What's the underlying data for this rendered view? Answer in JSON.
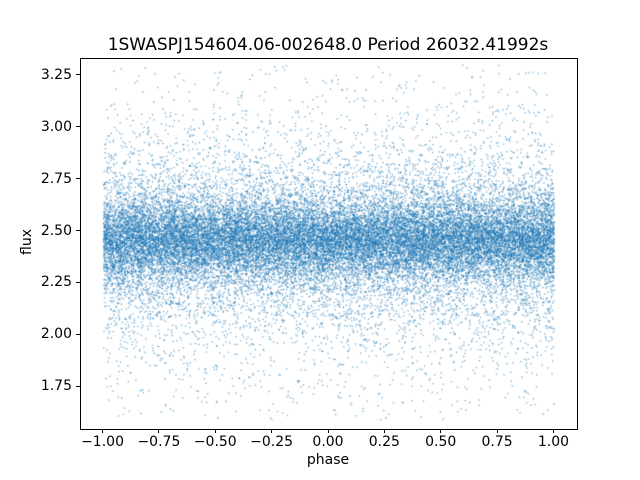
{
  "chart_data": {
    "type": "scatter",
    "title": "1SWASPJ154604.06-002648.0 Period 26032.41992s",
    "xlabel": "phase",
    "ylabel": "flux",
    "xlim": [
      -1.1,
      1.1
    ],
    "ylim": [
      1.55,
      3.33
    ],
    "grid": false,
    "legend": "none",
    "background_color": "#ffffff",
    "frame_color": "#000000",
    "marker_color": "#1f77b4",
    "marker_alpha": 0.55,
    "marker_size_px": 1.4,
    "xticks": {
      "values": [
        -1.0,
        -0.75,
        -0.5,
        -0.25,
        0.0,
        0.25,
        0.5,
        0.75,
        1.0
      ],
      "labels": [
        "−1.00",
        "−0.75",
        "−0.50",
        "−0.25",
        "0.00",
        "0.25",
        "0.50",
        "0.75",
        "1.00"
      ]
    },
    "yticks": {
      "values": [
        1.75,
        2.0,
        2.25,
        2.5,
        2.75,
        3.0,
        3.25
      ],
      "labels": [
        "1.75",
        "2.00",
        "2.25",
        "2.50",
        "2.75",
        "3.00",
        "3.25"
      ]
    },
    "points": {
      "description": "dense photometric noise scatter, uniform in phase, flux band centered ~2.46",
      "n": 30000,
      "seed": 42,
      "x_distribution": {
        "type": "uniform",
        "min": -1.0,
        "max": 1.0
      },
      "y_distribution": {
        "type": "gaussian-mixture",
        "components": [
          {
            "weight": 0.48,
            "mean": 2.46,
            "std": 0.085
          },
          {
            "weight": 0.34,
            "mean": 2.455,
            "std": 0.18
          },
          {
            "weight": 0.18,
            "mean": 2.45,
            "std": 0.38
          }
        ],
        "clip": [
          1.59,
          3.3
        ]
      }
    }
  }
}
